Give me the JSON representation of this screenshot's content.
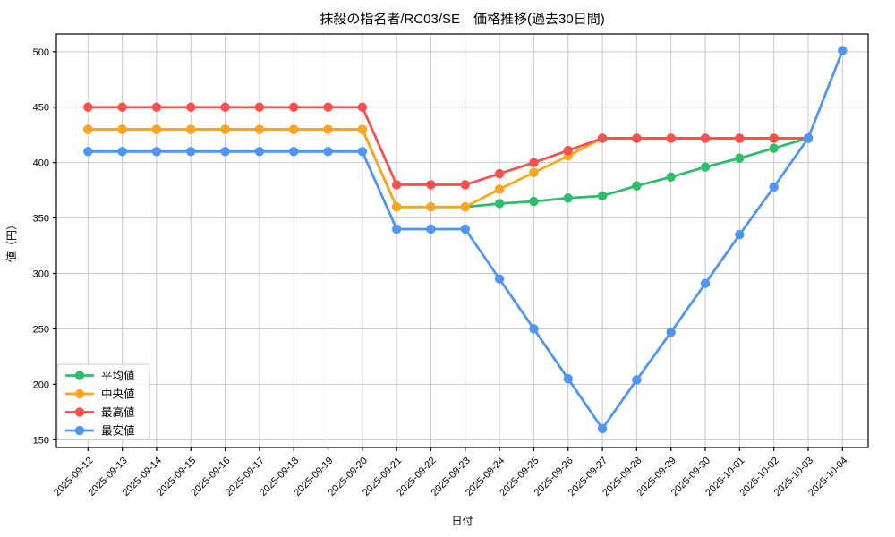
{
  "chart_data": {
    "type": "line",
    "title": "抹殺の指名者/RC03/SE　価格推移(過去30日間)",
    "xlabel": "日付",
    "ylabel": "値（円）",
    "grid": true,
    "legend_position": "lower left",
    "y_ticks": [
      150,
      200,
      250,
      300,
      350,
      400,
      450,
      500
    ],
    "ylim": [
      143,
      516
    ],
    "categories": [
      "2025-09-12",
      "2025-09-13",
      "2025-09-14",
      "2025-09-15",
      "2025-09-16",
      "2025-09-17",
      "2025-09-18",
      "2025-09-19",
      "2025-09-20",
      "2025-09-21",
      "2025-09-22",
      "2025-09-23",
      "2025-09-24",
      "2025-09-25",
      "2025-09-26",
      "2025-09-27",
      "2025-09-28",
      "2025-09-29",
      "2025-09-30",
      "2025-10-01",
      "2025-10-02",
      "2025-10-03",
      "2025-10-04"
    ],
    "series": [
      {
        "name": "平均値",
        "color": "#2ebd69",
        "values": [
          430,
          430,
          430,
          430,
          430,
          430,
          430,
          430,
          430,
          360,
          360,
          360,
          363,
          365,
          368,
          370,
          379,
          387,
          396,
          404,
          413,
          422,
          null
        ]
      },
      {
        "name": "中央値",
        "color": "#ffa41d",
        "values": [
          430,
          430,
          430,
          430,
          430,
          430,
          430,
          430,
          430,
          360,
          360,
          360,
          376,
          391,
          406,
          422,
          422,
          422,
          422,
          422,
          422,
          422,
          null
        ]
      },
      {
        "name": "最高値",
        "color": "#f6514e",
        "values": [
          450,
          450,
          450,
          450,
          450,
          450,
          450,
          450,
          450,
          380,
          380,
          380,
          390,
          400,
          411,
          422,
          422,
          422,
          422,
          422,
          422,
          422,
          null
        ]
      },
      {
        "name": "最安値",
        "color": "#4e95f6",
        "values": [
          410,
          410,
          410,
          410,
          410,
          410,
          410,
          410,
          410,
          340,
          340,
          340,
          295,
          250,
          205,
          160,
          204,
          247,
          291,
          335,
          378,
          422,
          501
        ]
      }
    ],
    "colors": {
      "grid": "#c9c9c9",
      "axis": "#000000",
      "text": "#000000",
      "legend_border": "#cccccc",
      "background": "#ffffff"
    }
  }
}
